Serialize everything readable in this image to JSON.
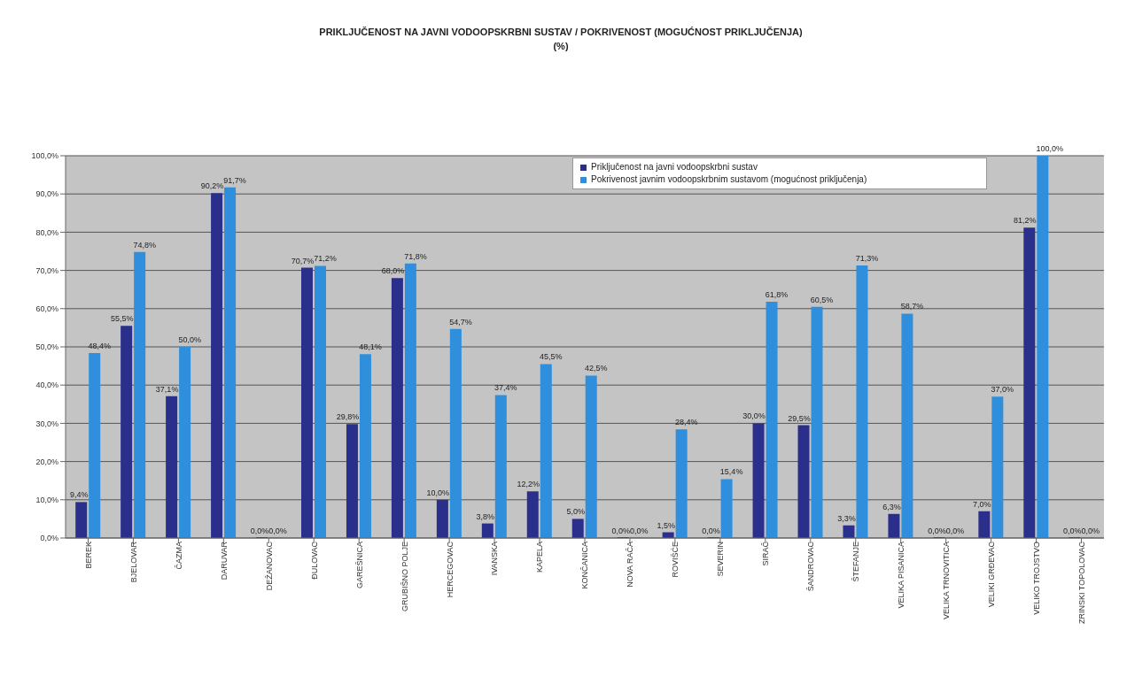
{
  "chart_data": {
    "type": "bar",
    "title": "PRIKLJUČENOST NA JAVNI VODOOPSKRBNI SUSTAV / POKRIVENOST (MOGUĆNOST PRIKLJUČENJA)",
    "subtitle": "(%)",
    "categories": [
      "BEREK",
      "BJELOVAR",
      "ČAZMA",
      "DARUVAR",
      "DEŽANOVAC",
      "ĐULOVAC",
      "GAREŠNICA",
      "GRUBIŠNO POLJE",
      "HERCEGOVAC",
      "IVANSKA",
      "KAPELA",
      "KONČANICA",
      "NOVA RAČA",
      "ROVIŠĆE",
      "SEVERIN",
      "SIRAČ",
      "ŠANDROVAC",
      "ŠTEFANJE",
      "VELIKA PISANICA",
      "VELIKA TRNOVITICA",
      "VELIKI GRĐEVAC",
      "VELIKO TROJSTVO",
      "ZRINSKI TOPOLOVAC"
    ],
    "series": [
      {
        "name": "Priključenost na javni vodoopskrbni sustav",
        "color": "#2b2f8c",
        "values": [
          9.4,
          55.5,
          37.1,
          90.2,
          0.0,
          70.7,
          29.8,
          68.0,
          10.0,
          3.8,
          12.2,
          5.0,
          0.0,
          1.5,
          0.0,
          30.0,
          29.5,
          3.3,
          6.3,
          0.0,
          7.0,
          81.2,
          0.0
        ],
        "value_labels": [
          "9,4%",
          "55,5%",
          "37,1%",
          "90,2%",
          "0,0%",
          "70,7%",
          "29,8%",
          "68,0%",
          "10,0%",
          "3,8%",
          "12,2%",
          "5,0%",
          "0,0%",
          "1,5%",
          "0,0%",
          "30,0%",
          "29,5%",
          "3,3%",
          "6,3%",
          "0,0%",
          "7,0%",
          "81,2%",
          "0,0%"
        ]
      },
      {
        "name": "Pokrivenost javnim vodoopskrbnim sustavom (mogućnost priključenja)",
        "color": "#2f8fdc",
        "values": [
          48.4,
          74.8,
          50.0,
          91.7,
          0.0,
          71.2,
          48.1,
          71.8,
          54.7,
          37.4,
          45.5,
          42.5,
          0.0,
          28.4,
          15.4,
          61.8,
          60.5,
          71.3,
          58.7,
          0.0,
          37.0,
          100.0,
          0.0
        ],
        "value_labels": [
          "48,4%",
          "74,8%",
          "50,0%",
          "91,7%",
          "0,0%",
          "71,2%",
          "48,1%",
          "71,8%",
          "54,7%",
          "37,4%",
          "45,5%",
          "42,5%",
          "0,0%",
          "28,4%",
          "15,4%",
          "61,8%",
          "60,5%",
          "71,3%",
          "58,7%",
          "0,0%",
          "37,0%",
          "100,0%",
          "0,0%"
        ]
      }
    ],
    "ylim": [
      0,
      100
    ],
    "yticks": [
      {
        "value": 0,
        "label": "0,0%"
      },
      {
        "value": 10,
        "label": "10,0%"
      },
      {
        "value": 20,
        "label": "20,0%"
      },
      {
        "value": 30,
        "label": "30,0%"
      },
      {
        "value": 40,
        "label": "40,0%"
      },
      {
        "value": 50,
        "label": "50,0%"
      },
      {
        "value": 60,
        "label": "60,0%"
      },
      {
        "value": 70,
        "label": "70,0%"
      },
      {
        "value": 80,
        "label": "80,0%"
      },
      {
        "value": 90,
        "label": "90,0%"
      },
      {
        "value": 100,
        "label": "100,0%"
      }
    ],
    "grid": "y",
    "legend": "top right"
  }
}
